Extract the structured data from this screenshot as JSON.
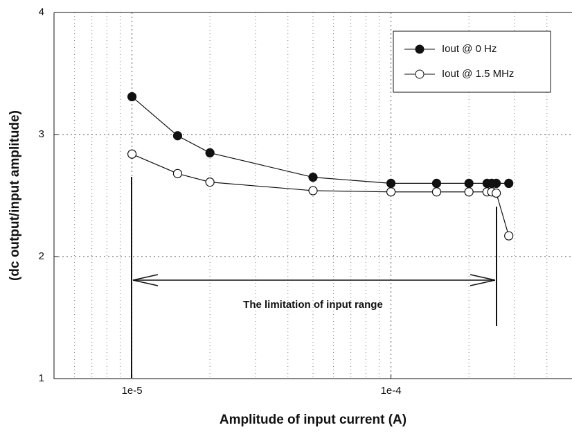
{
  "chart_data": {
    "type": "line",
    "x_label": "Amplitude of input current (A)",
    "y_label": "(dc output/input amplitude)",
    "annotation": "The limitation of input range",
    "log_x": true,
    "grid": true,
    "minor_grid": true,
    "legend": "upper right",
    "xlim": [
      5e-06,
      0.0005
    ],
    "ylim": [
      1,
      4
    ],
    "xticks": [
      {
        "value": 1e-05,
        "label": "1e-5"
      },
      {
        "value": 0.0001,
        "label": "1e-4"
      }
    ],
    "yticks": [
      1,
      2,
      3,
      4
    ],
    "x": [
      1e-05,
      1.5e-05,
      2e-05,
      5e-05,
      0.0001,
      0.00015,
      0.0002,
      0.000235,
      0.000245,
      0.000255,
      0.000285
    ],
    "series": [
      {
        "name": "Iout @ 0 Hz",
        "color": "#111111",
        "marker": "filled",
        "values": [
          3.31,
          2.99,
          2.85,
          2.65,
          2.6,
          2.6,
          2.6,
          2.6,
          2.6,
          2.6,
          2.6
        ]
      },
      {
        "name": "Iout @ 1.5 MHz",
        "color": "#111111",
        "marker": "open",
        "values": [
          2.84,
          2.68,
          2.61,
          2.54,
          2.53,
          2.53,
          2.53,
          2.53,
          2.53,
          2.52,
          2.17
        ]
      }
    ]
  }
}
